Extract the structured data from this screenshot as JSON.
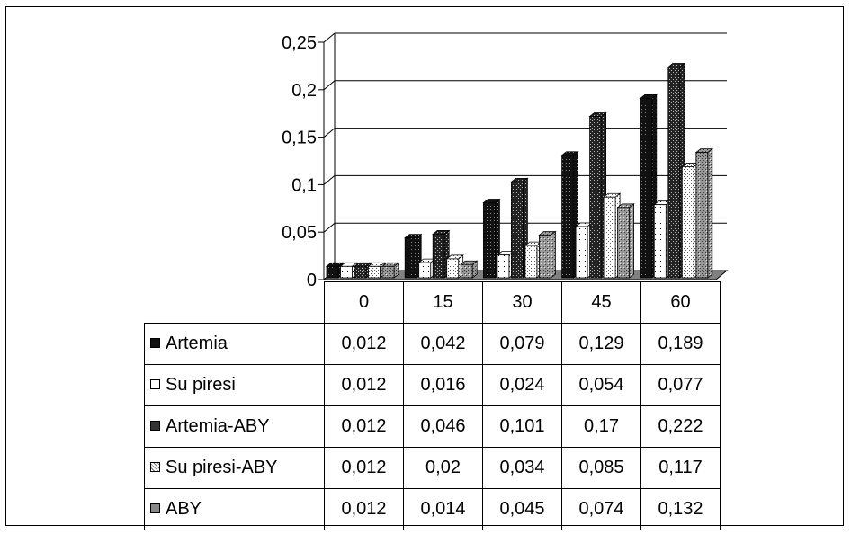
{
  "chart_data": {
    "type": "bar",
    "categories": [
      "0",
      "15",
      "30",
      "45",
      "60"
    ],
    "series": [
      {
        "name": "Artemia",
        "values": [
          0.012,
          0.042,
          0.079,
          0.129,
          0.189
        ],
        "color": "#111111",
        "pattern": "dark-dots"
      },
      {
        "name": "Su piresi",
        "values": [
          0.012,
          0.016,
          0.024,
          0.054,
          0.077
        ],
        "color": "#ffffff",
        "pattern": "sparse-dots"
      },
      {
        "name": "Artemia-ABY",
        "values": [
          0.012,
          0.046,
          0.101,
          0.17,
          0.222
        ],
        "color": "#222222",
        "pattern": "dark-checker"
      },
      {
        "name": "Su piresi-ABY",
        "values": [
          0.012,
          0.02,
          0.034,
          0.085,
          0.117
        ],
        "color": "#ffffff",
        "pattern": "light-dots"
      },
      {
        "name": "ABY",
        "values": [
          0.012,
          0.014,
          0.045,
          0.074,
          0.132
        ],
        "color": "#888888",
        "pattern": "grey-cross"
      }
    ],
    "table_values": [
      [
        "0,012",
        "0,042",
        "0,079",
        "0,129",
        "0,189"
      ],
      [
        "0,012",
        "0,016",
        "0,024",
        "0,054",
        "0,077"
      ],
      [
        "0,012",
        "0,046",
        "0,101",
        "0,17",
        "0,222"
      ],
      [
        "0,012",
        "0,02",
        "0,034",
        "0,085",
        "0,117"
      ],
      [
        "0,012",
        "0,014",
        "0,045",
        "0,074",
        "0,132"
      ]
    ],
    "y_ticks": [
      0,
      0.05,
      0.1,
      0.15,
      0.2,
      0.25
    ],
    "y_tick_labels": [
      "0",
      "0,05",
      "0,1",
      "0,15",
      "0,2",
      "0,25"
    ],
    "ylim": [
      0,
      0.25
    ],
    "grid": true,
    "style": "3d-clustered-column with data table"
  }
}
